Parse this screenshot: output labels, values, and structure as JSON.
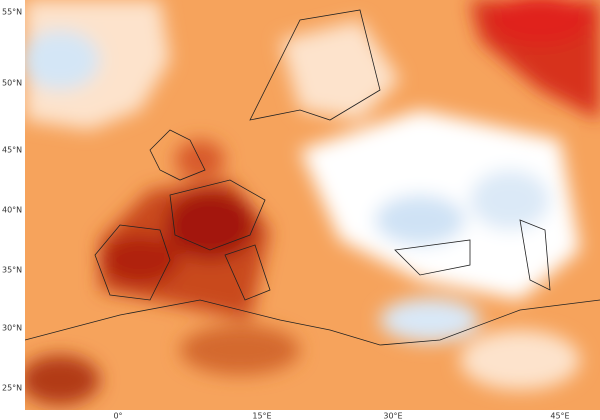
{
  "map": {
    "lat_labels": [
      "55°N",
      "50°N",
      "45°N",
      "40°N",
      "35°N",
      "30°N",
      "25°N"
    ],
    "lon_labels": [
      "0°",
      "15°E",
      "30°E",
      "45°E"
    ]
  }
}
